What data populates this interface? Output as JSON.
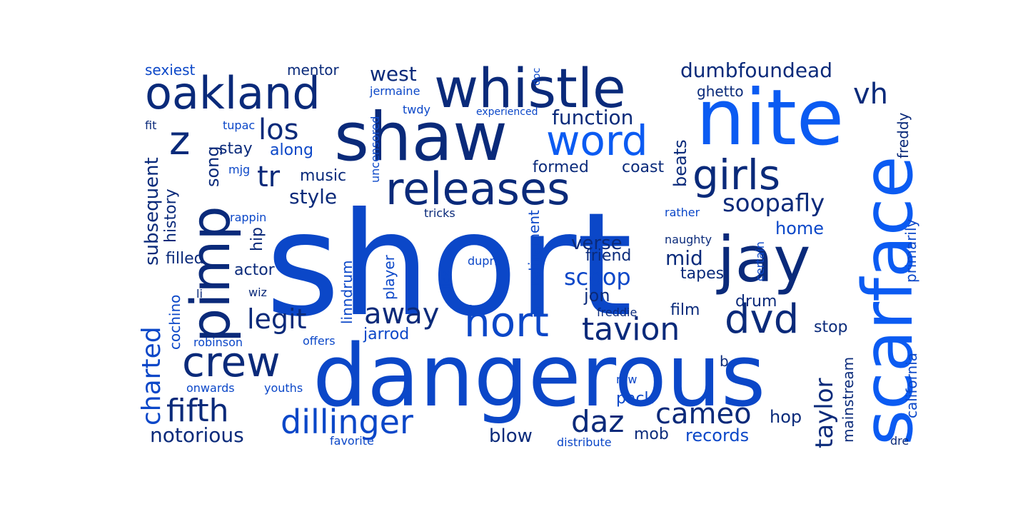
{
  "colors": {
    "background": "#ffffff",
    "palette": [
      "#0a2a7a",
      "#0b3aa6",
      "#0a4fd8",
      "#0b5bf2"
    ]
  },
  "words": [
    {
      "text": "short",
      "color": "#0b47c8",
      "vertical": false
    },
    {
      "text": "dangerous",
      "color": "#0b47c8",
      "vertical": false
    },
    {
      "text": "nite",
      "color": "#0b5bf2",
      "vertical": false
    },
    {
      "text": "shaw",
      "color": "#0a2a7a",
      "vertical": false
    },
    {
      "text": "scarface",
      "color": "#0b5bf2",
      "vertical": true
    },
    {
      "text": "jay",
      "color": "#0a2a7a",
      "vertical": false
    },
    {
      "text": "whistle",
      "color": "#0a2a7a",
      "vertical": false
    },
    {
      "text": "pimp",
      "color": "#0a2a7a",
      "vertical": true
    },
    {
      "text": "oakland",
      "color": "#0a2a7a",
      "vertical": false
    },
    {
      "text": "releases",
      "color": "#0a2a7a",
      "vertical": false
    },
    {
      "text": "word",
      "color": "#0b5bf2",
      "vertical": false
    },
    {
      "text": "hort",
      "color": "#0b47c8",
      "vertical": false
    },
    {
      "text": "girls",
      "color": "#0a2a7a",
      "vertical": false
    },
    {
      "text": "crew",
      "color": "#0a2a7a",
      "vertical": false
    },
    {
      "text": "dvd",
      "color": "#0a2a7a",
      "vertical": false
    },
    {
      "text": "z",
      "color": "#0a2a7a",
      "vertical": false
    },
    {
      "text": "tavion",
      "color": "#0a2a7a",
      "vertical": false
    },
    {
      "text": "dillinger",
      "color": "#0b47c8",
      "vertical": false
    },
    {
      "text": "fifth",
      "color": "#0a2a7a",
      "vertical": false
    },
    {
      "text": "away",
      "color": "#0a2a7a",
      "vertical": false
    },
    {
      "text": "daz",
      "color": "#0a2a7a",
      "vertical": false
    },
    {
      "text": "cameo",
      "color": "#0a2a7a",
      "vertical": false
    },
    {
      "text": "vh",
      "color": "#0a2a7a",
      "vertical": false
    },
    {
      "text": "tr",
      "color": "#0a2a7a",
      "vertical": false
    },
    {
      "text": "los",
      "color": "#0a2a7a",
      "vertical": false
    },
    {
      "text": "legit",
      "color": "#0a2a7a",
      "vertical": false
    },
    {
      "text": "soopafly",
      "color": "#0a2a7a",
      "vertical": false
    },
    {
      "text": "scoop",
      "color": "#0b47c8",
      "vertical": false
    },
    {
      "text": "taylor",
      "color": "#0a2a7a",
      "vertical": true
    },
    {
      "text": "charted",
      "color": "#0b47c8",
      "vertical": true
    },
    {
      "text": "dumbfoundead",
      "color": "#0a2a7a",
      "vertical": false
    },
    {
      "text": "west",
      "color": "#0a2a7a",
      "vertical": false
    },
    {
      "text": "function",
      "color": "#0a2a7a",
      "vertical": false
    },
    {
      "text": "notorious",
      "color": "#0a2a7a",
      "vertical": false
    },
    {
      "text": "style",
      "color": "#0a2a7a",
      "vertical": false
    },
    {
      "text": "mid",
      "color": "#0a2a7a",
      "vertical": false
    },
    {
      "text": "verse",
      "color": "#0a2a7a",
      "vertical": false
    },
    {
      "text": "subsequent",
      "color": "#0a2a7a",
      "vertical": true
    },
    {
      "text": "blow",
      "color": "#0a2a7a",
      "vertical": false
    },
    {
      "text": "home",
      "color": "#0b47c8",
      "vertical": false
    },
    {
      "text": "records",
      "color": "#0b47c8",
      "vertical": false
    },
    {
      "text": "beats",
      "color": "#0a2a7a",
      "vertical": true
    },
    {
      "text": "song",
      "color": "#0a2a7a",
      "vertical": true
    },
    {
      "text": "music",
      "color": "#0a2a7a",
      "vertical": false
    },
    {
      "text": "jon",
      "color": "#0a2a7a",
      "vertical": false
    },
    {
      "text": "hop",
      "color": "#0a2a7a",
      "vertical": false
    },
    {
      "text": "along",
      "color": "#0b47c8",
      "vertical": false
    },
    {
      "text": "stay",
      "color": "#0a2a7a",
      "vertical": false
    },
    {
      "text": "friend",
      "color": "#0a2a7a",
      "vertical": false
    },
    {
      "text": "actor",
      "color": "#0a2a7a",
      "vertical": false
    },
    {
      "text": "film",
      "color": "#0a2a7a",
      "vertical": false
    },
    {
      "text": "drum",
      "color": "#0a2a7a",
      "vertical": false
    },
    {
      "text": "hip",
      "color": "#0a2a7a",
      "vertical": true
    },
    {
      "text": "history",
      "color": "#0a2a7a",
      "vertical": true
    },
    {
      "text": "filled",
      "color": "#0a2a7a",
      "vertical": false
    },
    {
      "text": "formed",
      "color": "#0a2a7a",
      "vertical": false
    },
    {
      "text": "coast",
      "color": "#0a2a7a",
      "vertical": false
    },
    {
      "text": "tapes",
      "color": "#0a2a7a",
      "vertical": false
    },
    {
      "text": "stop",
      "color": "#0a2a7a",
      "vertical": false
    },
    {
      "text": "pack",
      "color": "#0b47c8",
      "vertical": false
    },
    {
      "text": "mob",
      "color": "#0a2a7a",
      "vertical": false
    },
    {
      "text": "jarrod",
      "color": "#0b47c8",
      "vertical": false
    },
    {
      "text": "california",
      "color": "#0b47c8",
      "vertical": true
    },
    {
      "text": "primarily",
      "color": "#0b47c8",
      "vertical": true
    },
    {
      "text": "mainstream",
      "color": "#0a2a7a",
      "vertical": true
    },
    {
      "text": "linndrum",
      "color": "#0b47c8",
      "vertical": true
    },
    {
      "text": "player",
      "color": "#0b47c8",
      "vertical": true
    },
    {
      "text": "retirement",
      "color": "#0b47c8",
      "vertical": true
    },
    {
      "text": "cochino",
      "color": "#0b47c8",
      "vertical": true
    },
    {
      "text": "freddy",
      "color": "#0a2a7a",
      "vertical": true
    },
    {
      "text": "ghetto",
      "color": "#0a2a7a",
      "vertical": false
    },
    {
      "text": "mentor",
      "color": "#0a2a7a",
      "vertical": false
    },
    {
      "text": "sexiest",
      "color": "#0b47c8",
      "vertical": false
    },
    {
      "text": "b",
      "color": "#0a2a7a",
      "vertical": false
    },
    {
      "text": "uncensored",
      "color": "#0b47c8",
      "vertical": true
    },
    {
      "text": "jermaine",
      "color": "#0b47c8",
      "vertical": false
    },
    {
      "text": "twdy",
      "color": "#0b47c8",
      "vertical": false
    },
    {
      "text": "doc",
      "color": "#0b47c8",
      "vertical": true
    },
    {
      "text": "experienced",
      "color": "#0b47c8",
      "vertical": false
    },
    {
      "text": "tupac",
      "color": "#0b47c8",
      "vertical": false
    },
    {
      "text": "fit",
      "color": "#0a2a7a",
      "vertical": false
    },
    {
      "text": "mjg",
      "color": "#0b47c8",
      "vertical": false
    },
    {
      "text": "rappin",
      "color": "#0b47c8",
      "vertical": false
    },
    {
      "text": "tricks",
      "color": "#0a2a7a",
      "vertical": false
    },
    {
      "text": "rather",
      "color": "#0b47c8",
      "vertical": false
    },
    {
      "text": "naughty",
      "color": "#0a2a7a",
      "vertical": false
    },
    {
      "text": "certain",
      "color": "#0b47c8",
      "vertical": true
    },
    {
      "text": "dupri",
      "color": "#0b47c8",
      "vertical": false
    },
    {
      "text": "slick",
      "color": "#0b47c8",
      "vertical": true
    },
    {
      "text": "li",
      "color": "#0a2a7a",
      "vertical": false
    },
    {
      "text": "wiz",
      "color": "#0a2a7a",
      "vertical": false
    },
    {
      "text": "freddie",
      "color": "#0a2a7a",
      "vertical": false
    },
    {
      "text": "robinson",
      "color": "#0b47c8",
      "vertical": false
    },
    {
      "text": "offers",
      "color": "#0b47c8",
      "vertical": false
    },
    {
      "text": "raw",
      "color": "#0b47c8",
      "vertical": false
    },
    {
      "text": "onwards",
      "color": "#0b47c8",
      "vertical": false
    },
    {
      "text": "youths",
      "color": "#0b47c8",
      "vertical": false
    },
    {
      "text": "favorite",
      "color": "#0b47c8",
      "vertical": false
    },
    {
      "text": "distribute",
      "color": "#0b47c8",
      "vertical": false
    },
    {
      "text": "dre",
      "color": "#0a2a7a",
      "vertical": false
    }
  ]
}
